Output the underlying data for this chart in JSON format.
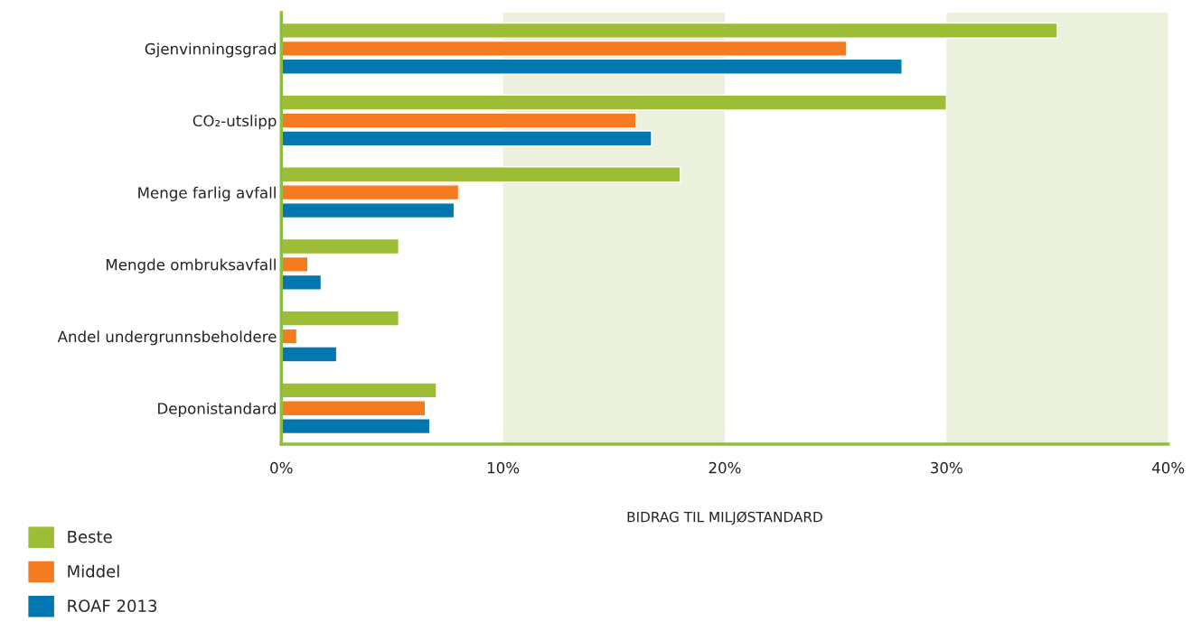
{
  "chart_data": {
    "type": "bar",
    "orientation": "horizontal",
    "xlabel": "BIDRAG TIL MILJØSTANDARD",
    "categories": [
      "Gjenvinningsgrad",
      "CO₂-utslipp",
      "Menge farlig avfall",
      "Mengde ombruksavfall",
      "Andel undergrunnsbeholdere",
      "Deponistandard"
    ],
    "series": [
      {
        "name": "Beste",
        "color": "#9dbd36",
        "values": [
          35.0,
          30.0,
          18.0,
          5.3,
          5.3,
          7.0
        ]
      },
      {
        "name": "Middel",
        "color": "#f47b20",
        "values": [
          25.5,
          16.0,
          8.0,
          1.2,
          0.7,
          6.5
        ]
      },
      {
        "name": "ROAF 2013",
        "color": "#0077b0",
        "values": [
          28.0,
          16.7,
          7.8,
          1.8,
          2.5,
          6.7
        ]
      }
    ],
    "xlim": [
      0,
      40
    ],
    "xticks": [
      {
        "value": 0,
        "label": "0%"
      },
      {
        "value": 10,
        "label": "10%"
      },
      {
        "value": 20,
        "label": "20%"
      },
      {
        "value": 30,
        "label": "30%"
      },
      {
        "value": 40,
        "label": "40%"
      }
    ],
    "bands": [
      {
        "axis": "x",
        "from": 10,
        "to": 20,
        "color": "#ebf1dc"
      },
      {
        "axis": "x",
        "from": 30,
        "to": 40,
        "color": "#ebf1dc"
      }
    ],
    "grid": false,
    "legend": "bottom left"
  }
}
